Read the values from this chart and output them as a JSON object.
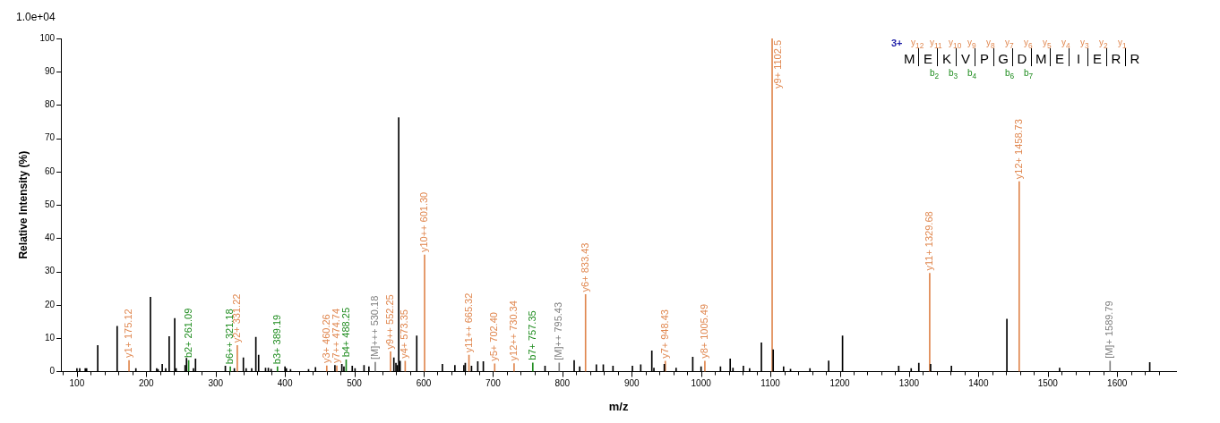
{
  "chart_data": {
    "type": "bar",
    "xlabel": "m/z",
    "ylabel": "Relative Intensity (%)",
    "annotations": [
      "1.0e+04",
      "3+",
      "M E K V P G D M E I E R R",
      "y$_{12}$ y$_{11}$ y$_{10}$ y$_{9}$ y$_{8}$ y$_{7}$ y$_{6}$ y$_{5}$ y$_{4}$ y$_{3}$ y$_{2}$ y$_{1}$",
      "b$_{2}$ b$_{3}$ b$_{4}$ b$_{6}$ b$_{7}$",
      {
        "text": "y1+ 175.12",
        "x": 175.12,
        "y": 3.3
      },
      {
        "text": "y2+ 331.22",
        "x": 331.22,
        "y": 7.8
      },
      {
        "text": "y3+ 460.26",
        "x": 460.26,
        "y": 1.7
      },
      {
        "text": "y7++ 474.74",
        "x": 474.74,
        "y": 1.7
      },
      {
        "text": "y9++ 552.25",
        "x": 552.25,
        "y": 5.9
      },
      {
        "text": "y4+ 573.35",
        "x": 573.35,
        "y": 3.1
      },
      {
        "text": "y10++ 601.30",
        "x": 601.3,
        "y": 35
      },
      {
        "text": "y11++ 665.32",
        "x": 665.32,
        "y": 4.9
      },
      {
        "text": "y5+ 702.40",
        "x": 702.4,
        "y": 2.3
      },
      {
        "text": "y12++ 730.34",
        "x": 730.34,
        "y": 2.4
      },
      {
        "text": "y6+ 833.43",
        "x": 833.43,
        "y": 23.1
      },
      {
        "text": "y7+ 948.43",
        "x": 948.43,
        "y": 3.1
      },
      {
        "text": "y8+ 1005.49",
        "x": 1005.49,
        "y": 3.1
      },
      {
        "text": "y9+ 1102.5",
        "x": 1102.5,
        "y": 100
      },
      {
        "text": "y11+ 1329.68",
        "x": 1329.68,
        "y": 29.5
      },
      {
        "text": "y12+ 1458.73",
        "x": 1458.73,
        "y": 57
      },
      {
        "text": "b2+ 261.09",
        "x": 261.09,
        "y": 3.3
      },
      {
        "text": "b6++ 321.18",
        "x": 321.18,
        "y": 1.4
      },
      {
        "text": "b3+ 389.19",
        "x": 389.19,
        "y": 1.4
      },
      {
        "text": "b4+ 488.25",
        "x": 488.25,
        "y": 3.5
      },
      {
        "text": "b7+ 757.35",
        "x": 757.35,
        "y": 2.6
      },
      {
        "text": "[M]+++ 530.18",
        "x": 530.18,
        "y": 2.8
      },
      {
        "text": "[M]++ 795.43",
        "x": 795.43,
        "y": 2.6
      },
      {
        "text": "[M]+ 1589.79",
        "x": 1589.79,
        "y": 3.1
      }
    ],
    "xlim": [
      77,
      1685
    ],
    "ylim": [
      0,
      100
    ],
    "xticks": [
      {
        "value": 80,
        "label": null
      },
      100,
      {
        "value": 120,
        "label": null
      },
      {
        "value": 140,
        "label": null
      },
      {
        "value": 160,
        "label": null
      },
      {
        "value": 180,
        "label": null
      },
      200,
      {
        "value": 220,
        "label": null
      },
      {
        "value": 240,
        "label": null
      },
      {
        "value": 260,
        "label": null
      },
      {
        "value": 280,
        "label": null
      },
      300,
      {
        "value": 320,
        "label": null
      },
      {
        "value": 340,
        "label": null
      },
      {
        "value": 360,
        "label": null
      },
      {
        "value": 380,
        "label": null
      },
      400,
      {
        "value": 420,
        "label": null
      },
      {
        "value": 440,
        "label": null
      },
      {
        "value": 460,
        "label": null
      },
      {
        "value": 480,
        "label": null
      },
      500,
      {
        "value": 520,
        "label": null
      },
      {
        "value": 540,
        "label": null
      },
      {
        "value": 560,
        "label": null
      },
      {
        "value": 580,
        "label": null
      },
      600,
      {
        "value": 620,
        "label": null
      },
      {
        "value": 640,
        "label": null
      },
      {
        "value": 660,
        "label": null
      },
      {
        "value": 680,
        "label": null
      },
      700,
      {
        "value": 720,
        "label": null
      },
      {
        "value": 740,
        "label": null
      },
      {
        "value": 760,
        "label": null
      },
      {
        "value": 780,
        "label": null
      },
      800,
      {
        "value": 820,
        "label": null
      },
      {
        "value": 840,
        "label": null
      },
      {
        "value": 860,
        "label": null
      },
      {
        "value": 880,
        "label": null
      },
      900,
      {
        "value": 920,
        "label": null
      },
      {
        "value": 940,
        "label": null
      },
      {
        "value": 960,
        "label": null
      },
      {
        "value": 980,
        "label": null
      },
      1000,
      {
        "value": 1020,
        "label": null
      },
      {
        "value": 1040,
        "label": null
      },
      {
        "value": 1060,
        "label": null
      },
      {
        "value": 1080,
        "label": null
      },
      1100,
      {
        "value": 1120,
        "label": null
      },
      {
        "value": 1140,
        "label": null
      },
      {
        "value": 1160,
        "label": null
      },
      {
        "value": 1180,
        "label": null
      },
      1200,
      {
        "value": 1220,
        "label": null
      },
      {
        "value": 1240,
        "label": null
      },
      {
        "value": 1260,
        "label": null
      },
      {
        "value": 1280,
        "label": null
      },
      1300,
      {
        "value": 1320,
        "label": null
      },
      {
        "value": 1340,
        "label": null
      },
      {
        "value": 1360,
        "label": null
      },
      {
        "value": 1380,
        "label": null
      },
      1400,
      {
        "value": 1420,
        "label": null
      },
      {
        "value": 1440,
        "label": null
      },
      {
        "value": 1460,
        "label": null
      },
      {
        "value": 1480,
        "label": null
      },
      1500,
      {
        "value": 1520,
        "label": null
      },
      {
        "value": 1540,
        "label": null
      },
      {
        "value": 1560,
        "label": null
      },
      {
        "value": 1580,
        "label": null
      },
      1600,
      {
        "value": 1620,
        "label": null
      },
      {
        "value": 1640,
        "label": null
      },
      {
        "value": 1660,
        "label": null
      }
    ],
    "yticks": [
      0,
      10,
      20,
      30,
      40,
      50,
      60,
      70,
      80,
      90,
      100
    ],
    "grid": false,
    "legend": false,
    "series": [
      {
        "color": "#000000",
        "x": [
          100,
          104,
          112,
          114,
          130,
          158,
          185,
          206,
          215,
          217,
          223,
          228,
          233,
          241,
          243,
          256,
          258,
          268,
          271,
          314,
          327,
          340,
          344,
          352,
          358,
          362,
          372,
          376,
          380,
          400,
          402,
          408,
          434,
          444,
          472,
          482,
          485,
          497,
          501,
          514,
          521,
          557,
          560,
          562,
          564,
          566,
          590,
          627,
          645,
          658,
          660,
          669,
          678,
          686,
          775,
          817,
          825,
          849,
          859,
          873,
          901,
          913,
          929,
          932,
          947,
          964,
          988,
          1000,
          1028,
          1042,
          1046,
          1061,
          1070,
          1087,
          1104,
          1119,
          1129,
          1157,
          1184,
          1204,
          1285,
          1303,
          1314,
          1331,
          1361,
          1441,
          1517,
          1647
        ],
        "values": [
          0.9,
          0.9,
          0.9,
          0.9,
          7.8,
          13.6,
          0.9,
          22.3,
          0.9,
          0.6,
          2.2,
          0.9,
          10.5,
          15.9,
          0.9,
          1.8,
          4.0,
          0.9,
          3.8,
          1.6,
          0.9,
          4.1,
          0.9,
          0.9,
          10.3,
          4.9,
          1.0,
          1.0,
          0.7,
          1.4,
          0.9,
          0.6,
          0.6,
          1.2,
          1.8,
          2.2,
          1.4,
          1.6,
          0.9,
          1.8,
          1.4,
          4.1,
          2.5,
          1.8,
          76.2,
          3.1,
          10.7,
          2.2,
          1.8,
          1.8,
          2.5,
          1.6,
          3.0,
          3.0,
          1.6,
          3.3,
          1.4,
          2.0,
          2.0,
          1.6,
          1.6,
          2.0,
          6.2,
          1.0,
          2.2,
          1.0,
          4.3,
          1.4,
          1.4,
          3.8,
          1.0,
          1.6,
          0.9,
          8.6,
          6.5,
          1.4,
          0.7,
          0.9,
          3.2,
          10.7,
          1.6,
          0.9,
          2.5,
          2.2,
          1.6,
          15.7,
          1.0,
          2.7
        ]
      },
      {
        "color": "#e0874f",
        "x": [
          175.12,
          331.22,
          460.26,
          474.74,
          552.25,
          573.35,
          601.3,
          665.32,
          702.4,
          730.34,
          833.43,
          948.43,
          1005.49,
          1102.5,
          1329.68,
          1458.73
        ],
        "values": [
          3.3,
          7.8,
          1.7,
          1.7,
          5.9,
          3.1,
          35,
          4.9,
          2.3,
          2.4,
          23.1,
          3.1,
          3.1,
          100,
          29.5,
          57
        ]
      },
      {
        "color": "#1e8c1e",
        "x": [
          261.09,
          321.18,
          389.19,
          488.25,
          757.35
        ],
        "values": [
          3.3,
          1.4,
          1.4,
          3.5,
          2.6
        ]
      },
      {
        "color": "#7f7f7f",
        "x": [
          530.18,
          795.43,
          1589.79
        ],
        "values": [
          2.8,
          2.6,
          3.1
        ]
      }
    ]
  }
}
